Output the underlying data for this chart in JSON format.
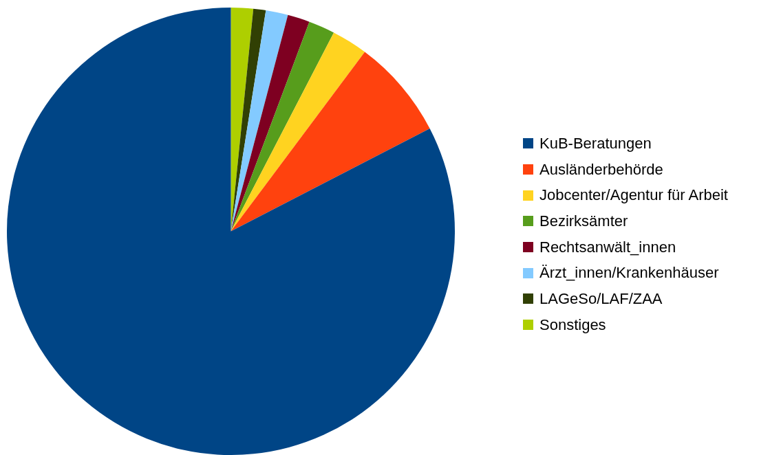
{
  "chart_data": {
    "type": "pie",
    "categories": [
      "KuB-Beratungen",
      "Ausländerbehörde",
      "Jobcenter/Agentur für Arbeit",
      "Bezirksämter",
      "Rechtsanwält_innen",
      "Ärzt_innen/Krankenhäuser",
      "LAGeSo/LAF/ZAA",
      "Sonstiges"
    ],
    "values": [
      82.6,
      7.2,
      2.6,
      1.9,
      1.6,
      1.6,
      0.9,
      1.6
    ],
    "colors": [
      "#004586",
      "#ff420e",
      "#ffd320",
      "#579d1c",
      "#7e0021",
      "#83caff",
      "#314004",
      "#aecf00"
    ],
    "legend": "right"
  }
}
